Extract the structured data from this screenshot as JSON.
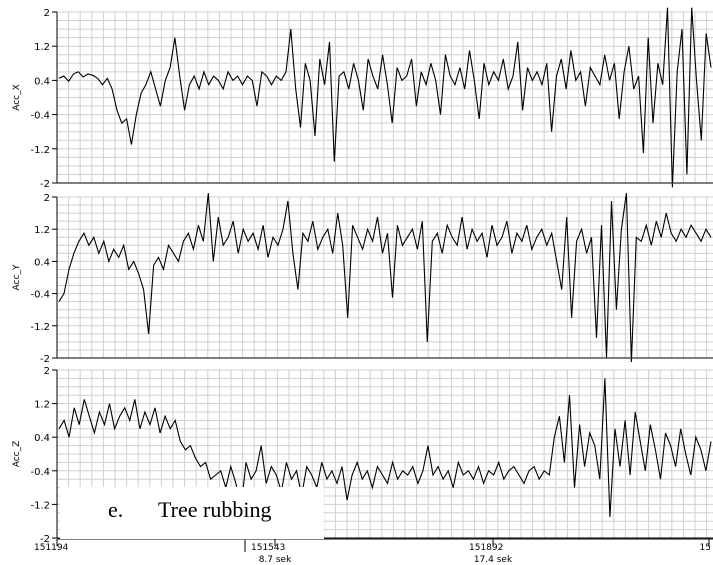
{
  "chart_data": [
    {
      "type": "line",
      "ylabel": "Acc_X",
      "ylim": [
        -2,
        2
      ],
      "y_ticks": [
        "2",
        "1.2",
        "0.4",
        "-0.4",
        "-1.2",
        "-2"
      ],
      "series": [
        {
          "values": [
            0.45,
            0.5,
            0.38,
            0.55,
            0.6,
            0.48,
            0.55,
            0.52,
            0.45,
            0.3,
            0.45,
            0.2,
            -0.3,
            -0.6,
            -0.5,
            -1.1,
            -0.4,
            0.1,
            0.3,
            0.6,
            0.2,
            -0.2,
            0.4,
            0.7,
            1.4,
            0.5,
            -0.3,
            0.3,
            0.5,
            0.2,
            0.6,
            0.3,
            0.5,
            0.4,
            0.2,
            0.6,
            0.4,
            0.5,
            0.3,
            0.5,
            0.4,
            -0.2,
            0.6,
            0.5,
            0.3,
            0.5,
            0.4,
            0.6,
            1.6,
            0.2,
            -0.7,
            0.8,
            0.4,
            -0.9,
            0.9,
            0.3,
            1.3,
            -1.5,
            0.5,
            0.6,
            0.2,
            0.8,
            0.4,
            -0.3,
            0.9,
            0.5,
            0.2,
            1.0,
            0.3,
            -0.6,
            0.7,
            0.4,
            0.5,
            0.9,
            -0.2,
            0.6,
            0.3,
            0.8,
            0.4,
            -0.4,
            1.0,
            0.5,
            0.3,
            0.7,
            0.2,
            1.1,
            0.4,
            -0.5,
            0.8,
            0.3,
            0.6,
            0.4,
            0.9,
            0.2,
            0.5,
            1.3,
            -0.3,
            0.7,
            0.4,
            0.6,
            0.3,
            0.8,
            -0.8,
            0.5,
            0.9,
            0.2,
            1.1,
            0.4,
            0.6,
            -0.2,
            0.7,
            0.5,
            0.3,
            1.0,
            0.4,
            0.8,
            -0.5,
            0.6,
            1.2,
            0.2,
            0.5,
            -1.3,
            1.4,
            -0.6,
            0.8,
            0.3,
            2.1,
            -2.1,
            0.6,
            1.6,
            -1.8,
            2.2,
            0.4,
            -1.0,
            1.5,
            0.7
          ],
          "color": "#000000"
        }
      ]
    },
    {
      "type": "line",
      "ylabel": "Acc_Y",
      "ylim": [
        -2,
        2
      ],
      "y_ticks": [
        "2",
        "1.2",
        "0.4",
        "-0.4",
        "-1.2",
        "-2"
      ],
      "series": [
        {
          "values": [
            -0.6,
            -0.4,
            0.2,
            0.6,
            0.9,
            1.1,
            0.8,
            1.0,
            0.6,
            0.9,
            0.4,
            0.7,
            0.5,
            0.8,
            0.2,
            0.4,
            0.1,
            -0.3,
            -1.4,
            0.3,
            0.5,
            0.2,
            0.8,
            0.6,
            0.4,
            0.9,
            1.1,
            0.7,
            1.3,
            0.9,
            2.2,
            0.4,
            1.5,
            0.8,
            1.0,
            1.4,
            0.6,
            1.2,
            0.9,
            1.1,
            0.7,
            1.3,
            0.5,
            1.0,
            0.8,
            1.2,
            1.9,
            0.6,
            -0.3,
            1.1,
            0.9,
            1.4,
            0.7,
            1.0,
            1.2,
            0.6,
            1.6,
            0.8,
            -1.0,
            1.3,
            1.0,
            0.7,
            1.2,
            0.9,
            1.5,
            0.6,
            1.1,
            -0.5,
            1.3,
            0.8,
            1.0,
            1.2,
            0.7,
            1.4,
            -1.6,
            0.9,
            1.1,
            0.6,
            1.3,
            1.0,
            0.8,
            1.5,
            0.7,
            1.2,
            0.9,
            1.1,
            0.5,
            1.3,
            0.8,
            1.0,
            1.4,
            0.6,
            1.1,
            0.9,
            1.3,
            0.7,
            1.0,
            1.2,
            0.8,
            1.1,
            0.4,
            -0.3,
            1.5,
            -1.0,
            0.9,
            1.2,
            0.6,
            1.0,
            -1.5,
            1.3,
            -2.0,
            1.9,
            -0.8,
            1.2,
            2.2,
            -2.1,
            1.0,
            0.9,
            1.3,
            0.8,
            1.4,
            1.0,
            1.6,
            1.1,
            0.9,
            1.2,
            1.0,
            1.3,
            1.1,
            0.9,
            1.2,
            1.0
          ],
          "color": "#000000"
        }
      ]
    },
    {
      "type": "line",
      "ylabel": "Acc_Z",
      "ylim": [
        -2,
        2
      ],
      "y_ticks": [
        "2",
        "1.2",
        "0.4",
        "-0.4",
        "-1.2",
        "-2"
      ],
      "series": [
        {
          "values": [
            0.6,
            0.8,
            0.4,
            1.1,
            0.7,
            1.3,
            0.9,
            0.5,
            1.0,
            0.7,
            1.2,
            0.6,
            0.9,
            1.1,
            0.8,
            1.3,
            0.6,
            1.0,
            0.7,
            1.1,
            0.5,
            0.9,
            0.6,
            0.8,
            0.3,
            0.1,
            0.2,
            -0.1,
            -0.3,
            -0.2,
            -0.6,
            -0.5,
            -0.4,
            -0.8,
            -0.3,
            -0.7,
            -1.3,
            -0.2,
            -0.6,
            -0.4,
            0.2,
            -0.7,
            -0.3,
            -0.5,
            -0.9,
            -0.2,
            -0.6,
            -0.4,
            -1.0,
            -0.3,
            -0.5,
            -0.8,
            -0.2,
            -0.6,
            -0.4,
            -0.7,
            -0.3,
            -1.1,
            -0.5,
            -0.2,
            -0.6,
            -0.4,
            -0.8,
            -0.3,
            -0.5,
            -0.7,
            -0.2,
            -0.6,
            -0.4,
            -0.5,
            -0.3,
            -0.7,
            -0.4,
            0.2,
            -0.5,
            -0.3,
            -0.6,
            -0.4,
            -0.8,
            -0.2,
            -0.5,
            -0.4,
            -0.6,
            -0.3,
            -0.7,
            -0.4,
            -0.5,
            -0.2,
            -0.6,
            -0.4,
            -0.3,
            -0.5,
            -0.7,
            -0.4,
            -0.3,
            -0.6,
            -0.4,
            -0.5,
            0.4,
            0.9,
            -0.2,
            1.4,
            -0.8,
            0.7,
            -0.3,
            0.5,
            0.2,
            -0.6,
            1.8,
            -1.5,
            0.6,
            -0.3,
            0.8,
            -0.5,
            1.0,
            0.3,
            -0.4,
            0.7,
            0.1,
            -0.6,
            0.5,
            0.2,
            -0.3,
            0.6,
            0.0,
            -0.5,
            0.4,
            0.1,
            -0.4,
            0.3
          ],
          "color": "#000000"
        }
      ]
    }
  ],
  "x_axis": {
    "ticks": [
      "151194",
      "151543",
      "151892",
      "15"
    ],
    "time_labels": [
      "8.7 sek",
      "17.4 sek"
    ]
  },
  "caption": {
    "letter": "e.",
    "text": "Tree rubbing"
  }
}
